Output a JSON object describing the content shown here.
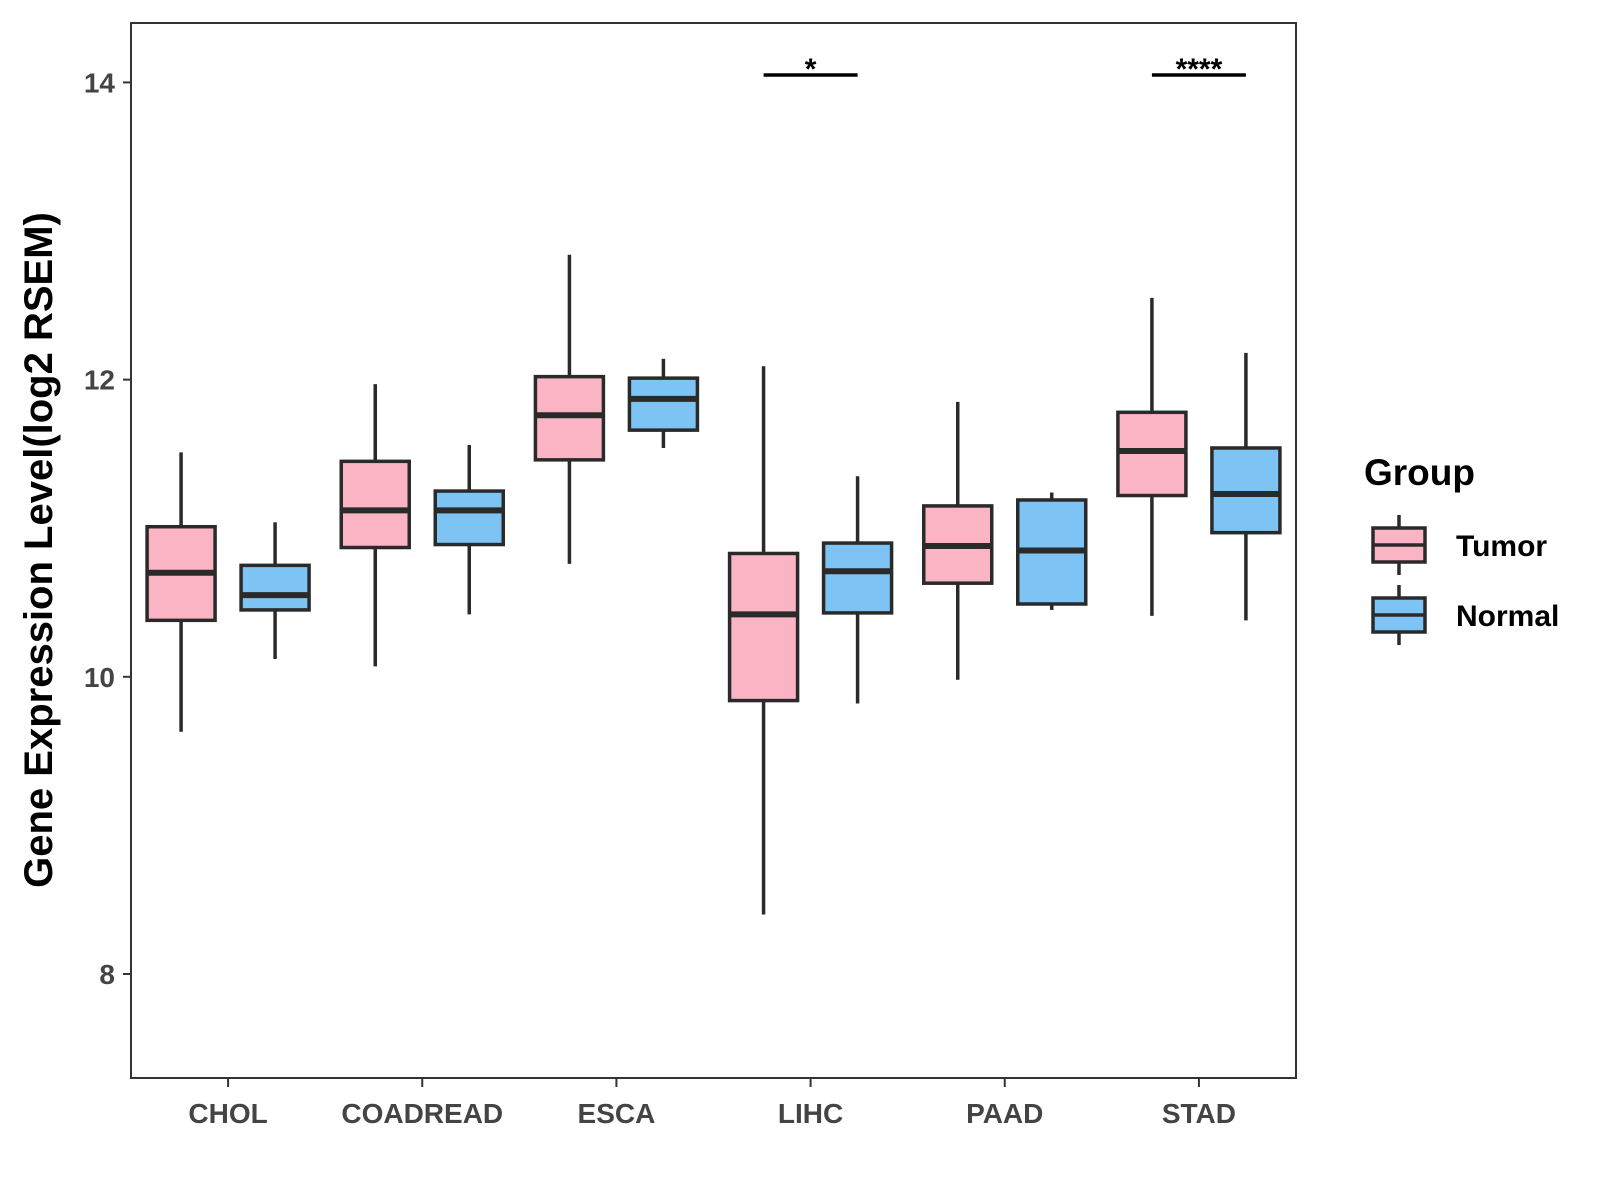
{
  "chart_data": {
    "type": "boxplot",
    "title": "",
    "xlabel": "",
    "ylabel": "Gene Expression Level(log2 RSEM)",
    "ylim": [
      7.3,
      14.4
    ],
    "yticks": [
      8,
      10,
      12,
      14
    ],
    "ytick_labels": [
      "8",
      "10",
      "12",
      "14"
    ],
    "categories": [
      "CHOL",
      "COADREAD",
      "ESCA",
      "LIHC",
      "PAAD",
      "STAD"
    ],
    "legend": {
      "title": "Group",
      "position": "right",
      "entries": [
        {
          "label": "Tumor",
          "color": "#FBB4C4"
        },
        {
          "label": "Normal",
          "color": "#7DC4F5"
        }
      ]
    },
    "series": [
      {
        "name": "Tumor",
        "color": "#FBB4C4",
        "boxes": [
          {
            "category": "CHOL",
            "min": 9.63,
            "q1": 10.38,
            "median": 10.7,
            "q3": 11.01,
            "max": 11.51
          },
          {
            "category": "COADREAD",
            "min": 10.07,
            "q1": 10.87,
            "median": 11.12,
            "q3": 11.45,
            "max": 11.97
          },
          {
            "category": "ESCA",
            "min": 10.76,
            "q1": 11.46,
            "median": 11.76,
            "q3": 12.02,
            "max": 12.84
          },
          {
            "category": "LIHC",
            "min": 8.4,
            "q1": 9.84,
            "median": 10.42,
            "q3": 10.83,
            "max": 12.09
          },
          {
            "category": "PAAD",
            "min": 9.98,
            "q1": 10.63,
            "median": 10.88,
            "q3": 11.15,
            "max": 11.85
          },
          {
            "category": "STAD",
            "min": 10.41,
            "q1": 11.22,
            "median": 11.52,
            "q3": 11.78,
            "max": 12.55
          }
        ]
      },
      {
        "name": "Normal",
        "color": "#7DC4F5",
        "boxes": [
          {
            "category": "CHOL",
            "min": 10.12,
            "q1": 10.45,
            "median": 10.55,
            "q3": 10.75,
            "max": 11.04
          },
          {
            "category": "COADREAD",
            "min": 10.42,
            "q1": 10.89,
            "median": 11.12,
            "q3": 11.25,
            "max": 11.56
          },
          {
            "category": "ESCA",
            "min": 11.54,
            "q1": 11.66,
            "median": 11.87,
            "q3": 12.01,
            "max": 12.14
          },
          {
            "category": "LIHC",
            "min": 9.82,
            "q1": 10.43,
            "median": 10.71,
            "q3": 10.9,
            "max": 11.35
          },
          {
            "category": "PAAD",
            "min": 10.45,
            "q1": 10.49,
            "median": 10.85,
            "q3": 11.19,
            "max": 11.24
          },
          {
            "category": "STAD",
            "min": 10.38,
            "q1": 10.97,
            "median": 11.23,
            "q3": 11.54,
            "max": 12.18
          }
        ]
      }
    ],
    "significance": [
      {
        "category": "LIHC",
        "label": "*",
        "y": 14.05
      },
      {
        "category": "STAD",
        "label": "****",
        "y": 14.05
      }
    ]
  }
}
